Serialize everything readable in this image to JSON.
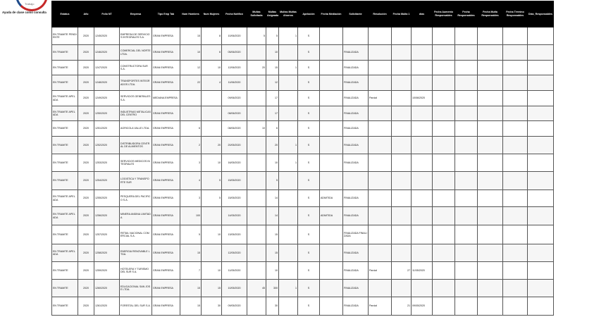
{
  "header": {
    "logo_text": "Trabajo",
    "caption": "Ayuda de clase como consulta"
  },
  "table": {
    "columns": [
      "Estatus",
      "Año",
      "Folio NT",
      "Empresa",
      "Tipo Emp Tab",
      "Num Hombres",
      "Num Mujeres",
      "Fecha Notificó",
      "Multas Solicitada",
      "Multas Asignada",
      "Multas Multas Ahorros",
      "Apelación",
      "Fecha Mediación",
      "Solicitante",
      "Resolución",
      "Fecha Multa 1",
      "días",
      "Fecha Aumento Responsables",
      "Fecha Responsables",
      "Fecha Multa Responsables",
      "Fecha Término Responsables",
      "Dias_Responsables"
    ],
    "rows": [
      {
        "h": 25,
        "c": [
          "EN TRAMITE PENDIENTE",
          "2020",
          "1245/2020",
          "EMPRESA DE SERVICIOS INTEGRALES S.A.",
          "GRAN EMPRESA",
          "15",
          "8",
          "10/06/2020",
          "5",
          "5",
          "1",
          "S",
          "",
          "",
          "",
          "",
          "",
          "",
          "",
          "",
          "",
          ""
        ]
      },
      {
        "h": 22,
        "c": [
          "EN TRAMITE",
          "2020",
          "1246/2020",
          "COMERCIAL DEL NORTE LTDA.",
          "GRAN EMPRESA",
          "10",
          "6",
          "05/06/2020",
          "",
          "10",
          "",
          "S",
          "",
          "FINALIZADA",
          "",
          "",
          "",
          "",
          "",
          "",
          "",
          ""
        ]
      },
      {
        "h": 21,
        "c": [
          "EN TRAMITE",
          "2020",
          "1247/2020",
          "CONSTRUCTORA SUR S.A.",
          "GRAN EMPRESA",
          "12",
          "10",
          "12/06/2020",
          "20",
          "15",
          "1",
          "S",
          "",
          "FINALIZADA",
          "",
          "",
          "",
          "",
          "",
          "",
          "",
          ""
        ]
      },
      {
        "h": 22,
        "c": [
          "EN TRAMITE",
          "2020",
          "1248/2020",
          "TRANSPORTES INTEGRADOS LTDA.",
          "GRAN EMPRESA",
          "22",
          "4",
          "11/06/2020",
          "",
          "12",
          "",
          "S",
          "",
          "FINALIZADA",
          "",
          "",
          "",
          "",
          "",
          "",
          "",
          ""
        ]
      },
      {
        "h": 22,
        "c": [
          "EN TRAMITE APELADA",
          "2020",
          "1249/2020",
          "SERVICIOS GENERALES S.A.",
          "MEDIANA EMPRESA",
          "",
          "",
          "09/06/2020",
          "",
          "17",
          "",
          "S",
          "",
          "FINALIZADA",
          "Parcial",
          "",
          "10/06/2020",
          "",
          "",
          "",
          "",
          ""
        ]
      },
      {
        "h": 21,
        "c": [
          "EN TRAMITE APELADA",
          "2020",
          "1250/2020",
          "INDUSTRIAS METALICAS DEL CENTRO",
          "GRAN EMPRESA",
          "",
          "",
          "08/06/2020",
          "",
          "17",
          "",
          "S",
          "",
          "FINALIZADA",
          "",
          "",
          "",
          "",
          "",
          "",
          "",
          ""
        ]
      },
      {
        "h": 22,
        "c": [
          "EN TRAMITE",
          "2020",
          "1251/2020",
          "AGRICOLA VALLE LTDA.",
          "GRAN EMPRESA",
          "6",
          "",
          "08/06/2020",
          "10",
          "6",
          "",
          "S",
          "",
          "FINALIZADA",
          "",
          "",
          "",
          "",
          "",
          "",
          "",
          ""
        ]
      },
      {
        "h": 25,
        "c": [
          "EN TRAMITE",
          "2020",
          "1252/2020",
          "DISTRIBUIDORA CENTRAL DE ALIMENTOS",
          "GRAN EMPRESA",
          "2",
          "20",
          "20/05/2020",
          "",
          "20",
          "1",
          "S",
          "",
          "FINALIZADA",
          "",
          "",
          "",
          "",
          "",
          "",
          "",
          ""
        ]
      },
      {
        "h": 25,
        "c": [
          "EN TRAMITE",
          "2020",
          "1253/2020",
          "SERVICIOS MEDICOS INTEGRALES",
          "GRAN EMPRESA",
          "3",
          "10",
          "16/05/2020",
          "",
          "10",
          "1",
          "S",
          "",
          "FINALIZADA",
          "",
          "",
          "",
          "",
          "",
          "",
          "",
          ""
        ]
      },
      {
        "h": 26,
        "c": [
          "EN TRAMITE",
          "2020",
          "1254/2020",
          "LOGISTICA Y TRANSPORTE SUR",
          "GRAN EMPRESA",
          "4",
          "5",
          "15/05/2020",
          "",
          "5",
          "",
          "S",
          "",
          "",
          "",
          "",
          "",
          "",
          "",
          "",
          "",
          ""
        ]
      },
      {
        "h": 24,
        "c": [
          "EN TRAMITE APELADA",
          "2020",
          "1255/2020",
          "PESQUERA DEL PACIFICO S.A.",
          "GRAN EMPRESA",
          "3",
          "5",
          "15/05/2020",
          "",
          "14",
          "",
          "S",
          "ADMITIDA",
          "FINALIZADA",
          "",
          "",
          "",
          "",
          "",
          "",
          "",
          ""
        ]
      },
      {
        "h": 26,
        "c": [
          "EN TRAMITE APELADA",
          "2020",
          "1256/2020",
          "MINERA ANDINA LIMITADA",
          "GRAN EMPRESA",
          "100",
          "",
          "14/05/2020",
          "",
          "14",
          "",
          "S",
          "ADMITIDA",
          "FINALIZADA",
          "",
          "",
          "",
          "",
          "",
          "",
          "",
          ""
        ]
      },
      {
        "h": 27,
        "c": [
          "EN TRAMITE",
          "2020",
          "1257/2020",
          "RETAIL NACIONAL COMERCIAL S.A.",
          "GRAN EMPRESA",
          "5",
          "10",
          "13/05/2020",
          "",
          "15",
          "",
          "S",
          "",
          "FINALIZADA FINALIZADA",
          "",
          "",
          "",
          "",
          "",
          "",
          "",
          ""
        ]
      },
      {
        "h": 25,
        "c": [
          "EN TRAMITE APELADA",
          "2020",
          "1258/2020",
          "ENERGIA RENOVABLE LTDA.",
          "GRAN EMPRESA",
          "15",
          "",
          "12/05/2020",
          "",
          "15",
          "",
          "S",
          "",
          "FINALIZADA",
          "",
          "",
          "",
          "",
          "",
          "",
          "",
          ""
        ]
      },
      {
        "h": 25,
        "c": [
          "EN TRAMITE",
          "2020",
          "1259/2020",
          "HOTELERA Y TURISMO DEL SUR S.A.",
          "GRAN EMPRESA",
          "7",
          "10",
          "11/05/2020",
          "",
          "10",
          "",
          "S",
          "",
          "FINALIZADA",
          "Parcial",
          "27",
          "11/05/2020",
          "",
          "",
          "",
          "",
          ""
        ]
      },
      {
        "h": 25,
        "c": [
          "EN TRAMITE",
          "2020",
          "1260/2020",
          "EDUCACIONAL SAN JOSE LTDA.",
          "GRAN EMPRESA",
          "15",
          "15",
          "10/05/2020",
          "45",
          "300",
          "1",
          "S",
          "",
          "FINALIZADA",
          "",
          "",
          "",
          "",
          "",
          "",
          "",
          ""
        ]
      },
      {
        "h": 26,
        "c": [
          "EN TRAMITE",
          "2020",
          "1261/2020",
          "FORESTAL DEL SUR S.A.",
          "GRAN EMPRESA",
          "15",
          "30",
          "09/05/2020",
          "",
          "30",
          "",
          "S",
          "",
          "FINALIZADA",
          "Parcial",
          "21",
          "09/05/2020",
          "",
          "",
          "",
          "",
          ""
        ]
      }
    ]
  }
}
